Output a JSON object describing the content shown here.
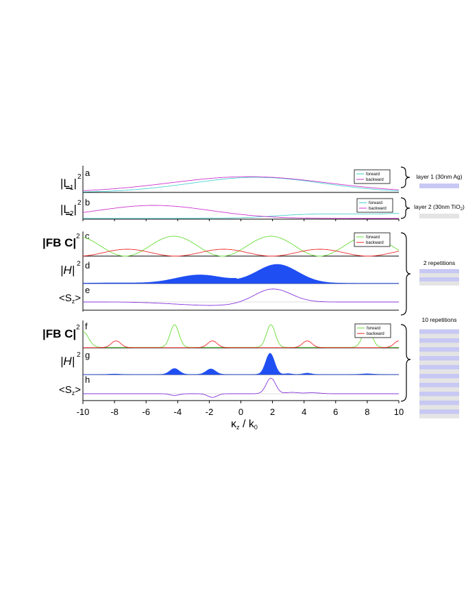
{
  "colors": {
    "forward": "#66dd33",
    "forward_ab": "#33cccc",
    "backward": "#cc33cc",
    "backward_red": "#ee2222",
    "fill": "#1f4ef2",
    "sz": "#8833dd",
    "layer_ag": "#c8c8f4",
    "layer_tio2": "#e4e4e4",
    "axis": "#000000"
  },
  "labels": {
    "l1_main": "|L",
    "l1_sub": "1",
    "l2_main": "|L",
    "l2_sub": "2",
    "fbc": "|FB C|",
    "h": "|H|",
    "sz": "<S",
    "sz_sub": "z",
    "sz_close": ">",
    "sq": "2",
    "xlabel_k": "κ",
    "xlabel_ksub": "z",
    "xlabel_mid": " / k",
    "xlabel_0": "0"
  },
  "panel_letters": [
    "a",
    "b",
    "c",
    "d",
    "e",
    "f",
    "g",
    "h"
  ],
  "legend": {
    "forward": "forward",
    "backward": "backward"
  },
  "right_panel": {
    "layer1": "layer 1 (30nm Ag)",
    "layer2_prefix": "layer 2 (30nm TiO",
    "layer2_sub": "2",
    "layer2_suffix": ")",
    "rep2": "2 repetitions",
    "rep10": "10 repetitions"
  },
  "chart_data": {
    "type": "line",
    "x_range": [
      -10,
      10
    ],
    "x_ticks": [
      -10,
      -8,
      -6,
      -4,
      -2,
      0,
      2,
      4,
      6,
      8,
      10
    ],
    "xlabel": "κz / k0",
    "panels": [
      {
        "letter": "a",
        "series": [
          {
            "name": "forward",
            "shape": "broad bump",
            "peak_x": 1.0
          },
          {
            "name": "backward",
            "shape": "broad bump",
            "peak_x": 0.5
          }
        ]
      },
      {
        "letter": "b",
        "series": [
          {
            "name": "forward",
            "shape": "rises to right",
            "peak_x": 5.0
          },
          {
            "name": "backward",
            "shape": "bump",
            "peak_x": -5.5
          }
        ]
      },
      {
        "letter": "c",
        "series": [
          {
            "name": "forward",
            "peaks_x": [
              -10,
              -4,
              2,
              8
            ]
          },
          {
            "name": "backward",
            "peaks_x": [
              -7,
              -1,
              5,
              10
            ]
          }
        ]
      },
      {
        "letter": "d",
        "filled": true,
        "peaks_x": [
          -2.5,
          2.2
        ]
      },
      {
        "letter": "e",
        "shape": "dip near -1.5, peak near 2"
      },
      {
        "letter": "f",
        "series": [
          {
            "name": "forward",
            "peaks_x": [
              -10,
              -4.2,
              1.9,
              8
            ]
          },
          {
            "name": "backward",
            "peaks_x": [
              -7.9,
              -1.8,
              4.2,
              10
            ]
          }
        ]
      },
      {
        "letter": "g",
        "filled": true,
        "peaks_x": [
          -4.2,
          -1.9,
          1.9
        ]
      },
      {
        "letter": "h",
        "shape": "dips near -4.2 and -1.8, peak near 1.9"
      }
    ]
  }
}
